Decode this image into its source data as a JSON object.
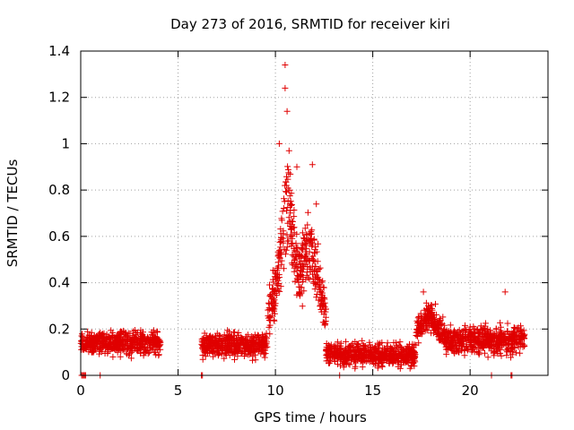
{
  "chart_data": {
    "type": "scatter",
    "title": "Day 273 of 2016, SRMTID for receiver kiri",
    "xlabel": "GPS time / hours",
    "ylabel": "SRMTID / TECUs",
    "xlim": [
      0,
      24
    ],
    "ylim": [
      0,
      1.4
    ],
    "xticks": [
      0,
      5,
      10,
      15,
      20
    ],
    "yticks": [
      0,
      0.2,
      0.4,
      0.6,
      0.8,
      1,
      1.2,
      1.4
    ],
    "grid": true,
    "marker": "plus",
    "color": "#e00000",
    "series": [
      {
        "name": "SRMTID",
        "segments": [
          {
            "start": 0.0,
            "end": 4.1,
            "base": 0.14,
            "spread": 0.05
          },
          {
            "start": 6.2,
            "end": 9.6,
            "base": 0.13,
            "spread": 0.05
          },
          {
            "start": 9.6,
            "end": 12.6,
            "base": 0.45,
            "spread": 0.2
          },
          {
            "start": 12.6,
            "end": 17.2,
            "base": 0.09,
            "spread": 0.05
          },
          {
            "start": 17.2,
            "end": 22.8,
            "base": 0.15,
            "spread": 0.06
          }
        ],
        "peaks": [
          {
            "x": 10.5,
            "y": 1.34
          },
          {
            "x": 10.5,
            "y": 1.24
          },
          {
            "x": 10.6,
            "y": 1.14
          },
          {
            "x": 10.2,
            "y": 1.0
          },
          {
            "x": 10.7,
            "y": 0.97
          },
          {
            "x": 11.1,
            "y": 0.9
          },
          {
            "x": 11.9,
            "y": 0.91
          },
          {
            "x": 12.1,
            "y": 0.74
          },
          {
            "x": 17.6,
            "y": 0.36
          },
          {
            "x": 21.8,
            "y": 0.36
          }
        ],
        "zero_points": [
          0.05,
          0.1,
          0.15,
          0.2,
          0.25,
          1.0,
          6.2,
          6.25,
          13.3,
          21.1,
          22.1,
          22.15
        ]
      }
    ]
  }
}
